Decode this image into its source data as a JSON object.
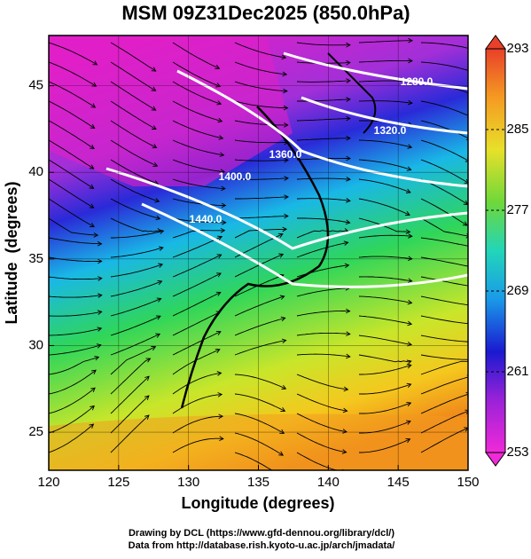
{
  "title": "MSM 09Z31Dec2025 (850.0hPa)",
  "x_axis": {
    "label": "Longitude (degrees)",
    "lim": [
      120,
      150
    ],
    "ticks": [
      120,
      125,
      130,
      135,
      140,
      145,
      150
    ]
  },
  "y_axis": {
    "label": "Latitude  (degrees)",
    "lim": [
      22.8,
      47.9
    ],
    "ticks": [
      25,
      30,
      35,
      40,
      45
    ]
  },
  "colorbar": {
    "lim": [
      253,
      293
    ],
    "ticks": [
      253,
      261,
      269,
      277,
      285,
      293
    ]
  },
  "contour_labels": [
    "1280.0",
    "1320.0",
    "1360.0",
    "1400.0",
    "1440.0"
  ],
  "footer": [
    "Drawing by DCL (https://www.gfd-dennou.org/library/dcl/)",
    "Data from http://database.rish.kyoto-u.ac.jp/arch/jmadata/"
  ]
}
